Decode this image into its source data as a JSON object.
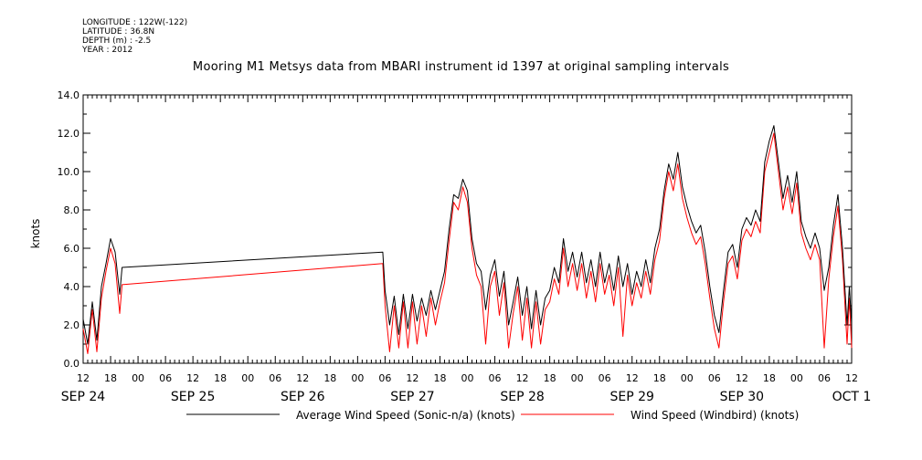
{
  "meta": {
    "longitude": "LONGITUDE : 122W(-122)",
    "latitude": "LATITUDE : 36.8N",
    "depth": "DEPTH (m) : -2.5",
    "year": "YEAR : 2012"
  },
  "colors": {
    "series_avg": "#000000",
    "series_windbird": "#ff0000"
  },
  "chart_data": {
    "type": "line",
    "title": "Mooring M1 Metsys data from MBARI instrument id 1397 at original sampling intervals",
    "ylabel": "knots",
    "xlabel": "",
    "ylim": [
      0,
      14
    ],
    "y_ticks": [
      "0.0",
      "2.0",
      "4.0",
      "6.0",
      "8.0",
      "10.0",
      "12.0",
      "14.0"
    ],
    "xlim": [
      "2012-09-24T12:00",
      "2012-10-01T12:00"
    ],
    "x_hour_ticks": [
      "12",
      "18",
      "00",
      "06",
      "12",
      "18",
      "00",
      "06",
      "12",
      "18",
      "00",
      "06",
      "12",
      "18",
      "00",
      "06",
      "12",
      "18",
      "00",
      "06",
      "12",
      "18",
      "00",
      "06",
      "12",
      "18",
      "00",
      "06",
      "12"
    ],
    "x_day_labels": [
      {
        "label": "SEP 24",
        "at": "2012-09-24T12:00"
      },
      {
        "label": "SEP 25",
        "at": "2012-09-25T12:00"
      },
      {
        "label": "SEP 26",
        "at": "2012-09-26T12:00"
      },
      {
        "label": "SEP 27",
        "at": "2012-09-27T12:00"
      },
      {
        "label": "SEP 28",
        "at": "2012-09-28T12:00"
      },
      {
        "label": "SEP 29",
        "at": "2012-09-29T12:00"
      },
      {
        "label": "SEP 30",
        "at": "2012-09-30T12:00"
      },
      {
        "label": "OCT  1",
        "at": "2012-10-01T12:00"
      }
    ],
    "legend_placement": "bottom",
    "series": [
      {
        "name": "Average Wind Speed (Sonic-n/a) (knots)",
        "color": "#000000",
        "points": [
          [
            "2012-09-24T12:00",
            2.3
          ],
          [
            "2012-09-24T13:00",
            1.0
          ],
          [
            "2012-09-24T14:00",
            3.2
          ],
          [
            "2012-09-24T15:00",
            1.2
          ],
          [
            "2012-09-24T16:00",
            4.0
          ],
          [
            "2012-09-24T17:00",
            5.2
          ],
          [
            "2012-09-24T18:00",
            6.5
          ],
          [
            "2012-09-24T19:00",
            5.8
          ],
          [
            "2012-09-24T20:00",
            3.6
          ],
          [
            "2012-09-24T20:30",
            5.0
          ],
          [
            "2012-09-27T05:30",
            5.8
          ],
          [
            "2012-09-27T06:00",
            3.8
          ],
          [
            "2012-09-27T07:00",
            2.0
          ],
          [
            "2012-09-27T08:00",
            3.5
          ],
          [
            "2012-09-27T09:00",
            1.5
          ],
          [
            "2012-09-27T10:00",
            3.6
          ],
          [
            "2012-09-27T11:00",
            1.8
          ],
          [
            "2012-09-27T12:00",
            3.6
          ],
          [
            "2012-09-27T13:00",
            2.2
          ],
          [
            "2012-09-27T14:00",
            3.4
          ],
          [
            "2012-09-27T15:00",
            2.5
          ],
          [
            "2012-09-27T16:00",
            3.8
          ],
          [
            "2012-09-27T17:00",
            2.8
          ],
          [
            "2012-09-27T18:00",
            3.8
          ],
          [
            "2012-09-27T19:00",
            4.8
          ],
          [
            "2012-09-27T20:00",
            7.0
          ],
          [
            "2012-09-27T21:00",
            8.8
          ],
          [
            "2012-09-27T22:00",
            8.6
          ],
          [
            "2012-09-27T23:00",
            9.6
          ],
          [
            "2012-09-28T00:00",
            9.0
          ],
          [
            "2012-09-28T01:00",
            6.5
          ],
          [
            "2012-09-28T02:00",
            5.2
          ],
          [
            "2012-09-28T03:00",
            4.8
          ],
          [
            "2012-09-28T04:00",
            2.8
          ],
          [
            "2012-09-28T05:00",
            4.6
          ],
          [
            "2012-09-28T06:00",
            5.4
          ],
          [
            "2012-09-28T07:00",
            3.5
          ],
          [
            "2012-09-28T08:00",
            4.8
          ],
          [
            "2012-09-28T09:00",
            2.0
          ],
          [
            "2012-09-28T10:00",
            3.2
          ],
          [
            "2012-09-28T11:00",
            4.5
          ],
          [
            "2012-09-28T12:00",
            2.5
          ],
          [
            "2012-09-28T13:00",
            4.0
          ],
          [
            "2012-09-28T14:00",
            1.8
          ],
          [
            "2012-09-28T15:00",
            3.8
          ],
          [
            "2012-09-28T16:00",
            2.0
          ],
          [
            "2012-09-28T17:00",
            3.4
          ],
          [
            "2012-09-28T18:00",
            3.8
          ],
          [
            "2012-09-28T19:00",
            5.0
          ],
          [
            "2012-09-28T20:00",
            4.2
          ],
          [
            "2012-09-28T21:00",
            6.5
          ],
          [
            "2012-09-28T22:00",
            4.8
          ],
          [
            "2012-09-28T23:00",
            5.8
          ],
          [
            "2012-09-29T00:00",
            4.5
          ],
          [
            "2012-09-29T01:00",
            5.8
          ],
          [
            "2012-09-29T02:00",
            4.2
          ],
          [
            "2012-09-29T03:00",
            5.4
          ],
          [
            "2012-09-29T04:00",
            4.0
          ],
          [
            "2012-09-29T05:00",
            5.8
          ],
          [
            "2012-09-29T06:00",
            4.2
          ],
          [
            "2012-09-29T07:00",
            5.2
          ],
          [
            "2012-09-29T08:00",
            3.8
          ],
          [
            "2012-09-29T09:00",
            5.6
          ],
          [
            "2012-09-29T10:00",
            4.0
          ],
          [
            "2012-09-29T11:00",
            5.2
          ],
          [
            "2012-09-29T12:00",
            3.6
          ],
          [
            "2012-09-29T13:00",
            4.8
          ],
          [
            "2012-09-29T14:00",
            4.0
          ],
          [
            "2012-09-29T15:00",
            5.4
          ],
          [
            "2012-09-29T16:00",
            4.2
          ],
          [
            "2012-09-29T17:00",
            6.0
          ],
          [
            "2012-09-29T18:00",
            7.0
          ],
          [
            "2012-09-29T19:00",
            9.0
          ],
          [
            "2012-09-29T20:00",
            10.4
          ],
          [
            "2012-09-29T21:00",
            9.6
          ],
          [
            "2012-09-29T22:00",
            11.0
          ],
          [
            "2012-09-29T23:00",
            9.2
          ],
          [
            "2012-09-30T00:00",
            8.2
          ],
          [
            "2012-09-30T01:00",
            7.4
          ],
          [
            "2012-09-30T02:00",
            6.8
          ],
          [
            "2012-09-30T03:00",
            7.2
          ],
          [
            "2012-09-30T04:00",
            5.8
          ],
          [
            "2012-09-30T05:00",
            4.0
          ],
          [
            "2012-09-30T06:00",
            2.5
          ],
          [
            "2012-09-30T07:00",
            1.6
          ],
          [
            "2012-09-30T08:00",
            3.8
          ],
          [
            "2012-09-30T09:00",
            5.8
          ],
          [
            "2012-09-30T10:00",
            6.2
          ],
          [
            "2012-09-30T11:00",
            5.0
          ],
          [
            "2012-09-30T12:00",
            7.0
          ],
          [
            "2012-09-30T13:00",
            7.6
          ],
          [
            "2012-09-30T14:00",
            7.2
          ],
          [
            "2012-09-30T15:00",
            8.0
          ],
          [
            "2012-09-30T16:00",
            7.4
          ],
          [
            "2012-09-30T17:00",
            10.5
          ],
          [
            "2012-09-30T18:00",
            11.6
          ],
          [
            "2012-09-30T19:00",
            12.4
          ],
          [
            "2012-09-30T20:00",
            10.5
          ],
          [
            "2012-09-30T21:00",
            8.6
          ],
          [
            "2012-09-30T22:00",
            9.8
          ],
          [
            "2012-09-30T23:00",
            8.4
          ],
          [
            "2012-10-01T00:00",
            10.0
          ],
          [
            "2012-10-01T01:00",
            7.4
          ],
          [
            "2012-10-01T02:00",
            6.6
          ],
          [
            "2012-10-01T03:00",
            6.0
          ],
          [
            "2012-10-01T04:00",
            6.8
          ],
          [
            "2012-10-01T05:00",
            6.0
          ],
          [
            "2012-10-01T06:00",
            3.8
          ],
          [
            "2012-10-01T07:00",
            5.0
          ],
          [
            "2012-10-01T08:00",
            7.2
          ],
          [
            "2012-10-01T09:00",
            8.8
          ],
          [
            "2012-10-01T10:00",
            6.0
          ],
          [
            "2012-10-01T11:00",
            2.0
          ],
          [
            "2012-10-01T11:30",
            4.0
          ],
          [
            "2012-10-01T12:00",
            2.0
          ]
        ]
      },
      {
        "name": "Wind Speed (Windbird) (knots)",
        "color": "#ff0000",
        "points": [
          [
            "2012-09-24T12:00",
            1.8
          ],
          [
            "2012-09-24T13:00",
            0.5
          ],
          [
            "2012-09-24T14:00",
            2.8
          ],
          [
            "2012-09-24T15:00",
            0.6
          ],
          [
            "2012-09-24T16:00",
            3.4
          ],
          [
            "2012-09-24T17:00",
            4.8
          ],
          [
            "2012-09-24T18:00",
            6.0
          ],
          [
            "2012-09-24T19:00",
            5.2
          ],
          [
            "2012-09-24T20:00",
            2.6
          ],
          [
            "2012-09-24T20:30",
            4.1
          ],
          [
            "2012-09-27T05:30",
            5.2
          ],
          [
            "2012-09-27T06:00",
            3.0
          ],
          [
            "2012-09-27T07:00",
            0.6
          ],
          [
            "2012-09-27T08:00",
            3.0
          ],
          [
            "2012-09-27T09:00",
            0.8
          ],
          [
            "2012-09-27T10:00",
            3.2
          ],
          [
            "2012-09-27T11:00",
            0.8
          ],
          [
            "2012-09-27T12:00",
            3.2
          ],
          [
            "2012-09-27T13:00",
            1.0
          ],
          [
            "2012-09-27T14:00",
            3.0
          ],
          [
            "2012-09-27T15:00",
            1.4
          ],
          [
            "2012-09-27T16:00",
            3.4
          ],
          [
            "2012-09-27T17:00",
            2.0
          ],
          [
            "2012-09-27T18:00",
            3.2
          ],
          [
            "2012-09-27T19:00",
            4.2
          ],
          [
            "2012-09-27T20:00",
            6.4
          ],
          [
            "2012-09-27T21:00",
            8.4
          ],
          [
            "2012-09-27T22:00",
            8.0
          ],
          [
            "2012-09-27T23:00",
            9.2
          ],
          [
            "2012-09-28T00:00",
            8.4
          ],
          [
            "2012-09-28T01:00",
            6.0
          ],
          [
            "2012-09-28T02:00",
            4.6
          ],
          [
            "2012-09-28T03:00",
            4.0
          ],
          [
            "2012-09-28T04:00",
            1.0
          ],
          [
            "2012-09-28T05:00",
            4.0
          ],
          [
            "2012-09-28T06:00",
            4.8
          ],
          [
            "2012-09-28T07:00",
            2.5
          ],
          [
            "2012-09-28T08:00",
            4.2
          ],
          [
            "2012-09-28T09:00",
            0.8
          ],
          [
            "2012-09-28T10:00",
            2.6
          ],
          [
            "2012-09-28T11:00",
            4.0
          ],
          [
            "2012-09-28T12:00",
            1.2
          ],
          [
            "2012-09-28T13:00",
            3.4
          ],
          [
            "2012-09-28T14:00",
            0.8
          ],
          [
            "2012-09-28T15:00",
            3.2
          ],
          [
            "2012-09-28T16:00",
            1.0
          ],
          [
            "2012-09-28T17:00",
            2.8
          ],
          [
            "2012-09-28T18:00",
            3.2
          ],
          [
            "2012-09-28T19:00",
            4.4
          ],
          [
            "2012-09-28T20:00",
            3.6
          ],
          [
            "2012-09-28T21:00",
            6.0
          ],
          [
            "2012-09-28T22:00",
            4.0
          ],
          [
            "2012-09-28T23:00",
            5.2
          ],
          [
            "2012-09-29T00:00",
            3.8
          ],
          [
            "2012-09-29T01:00",
            5.2
          ],
          [
            "2012-09-29T02:00",
            3.4
          ],
          [
            "2012-09-29T03:00",
            4.8
          ],
          [
            "2012-09-29T04:00",
            3.2
          ],
          [
            "2012-09-29T05:00",
            5.2
          ],
          [
            "2012-09-29T06:00",
            3.6
          ],
          [
            "2012-09-29T07:00",
            4.6
          ],
          [
            "2012-09-29T08:00",
            3.0
          ],
          [
            "2012-09-29T09:00",
            5.0
          ],
          [
            "2012-09-29T10:00",
            1.4
          ],
          [
            "2012-09-29T11:00",
            4.6
          ],
          [
            "2012-09-29T12:00",
            3.0
          ],
          [
            "2012-09-29T13:00",
            4.2
          ],
          [
            "2012-09-29T14:00",
            3.4
          ],
          [
            "2012-09-29T15:00",
            4.8
          ],
          [
            "2012-09-29T16:00",
            3.6
          ],
          [
            "2012-09-29T17:00",
            5.4
          ],
          [
            "2012-09-29T18:00",
            6.4
          ],
          [
            "2012-09-29T19:00",
            8.6
          ],
          [
            "2012-09-29T20:00",
            10.0
          ],
          [
            "2012-09-29T21:00",
            9.0
          ],
          [
            "2012-09-29T22:00",
            10.4
          ],
          [
            "2012-09-29T23:00",
            8.6
          ],
          [
            "2012-09-30T00:00",
            7.6
          ],
          [
            "2012-09-30T01:00",
            6.8
          ],
          [
            "2012-09-30T02:00",
            6.2
          ],
          [
            "2012-09-30T03:00",
            6.6
          ],
          [
            "2012-09-30T04:00",
            5.2
          ],
          [
            "2012-09-30T05:00",
            3.4
          ],
          [
            "2012-09-30T06:00",
            1.8
          ],
          [
            "2012-09-30T07:00",
            0.8
          ],
          [
            "2012-09-30T08:00",
            3.2
          ],
          [
            "2012-09-30T09:00",
            5.2
          ],
          [
            "2012-09-30T10:00",
            5.6
          ],
          [
            "2012-09-30T11:00",
            4.4
          ],
          [
            "2012-09-30T12:00",
            6.4
          ],
          [
            "2012-09-30T13:00",
            7.0
          ],
          [
            "2012-09-30T14:00",
            6.6
          ],
          [
            "2012-09-30T15:00",
            7.4
          ],
          [
            "2012-09-30T16:00",
            6.8
          ],
          [
            "2012-09-30T17:00",
            10.0
          ],
          [
            "2012-09-30T18:00",
            11.0
          ],
          [
            "2012-09-30T19:00",
            12.0
          ],
          [
            "2012-09-30T20:00",
            10.0
          ],
          [
            "2012-09-30T21:00",
            8.0
          ],
          [
            "2012-09-30T22:00",
            9.2
          ],
          [
            "2012-09-30T23:00",
            7.8
          ],
          [
            "2012-10-01T00:00",
            9.4
          ],
          [
            "2012-10-01T01:00",
            6.8
          ],
          [
            "2012-10-01T02:00",
            6.0
          ],
          [
            "2012-10-01T03:00",
            5.4
          ],
          [
            "2012-10-01T04:00",
            6.2
          ],
          [
            "2012-10-01T05:00",
            5.4
          ],
          [
            "2012-10-01T06:00",
            0.8
          ],
          [
            "2012-10-01T07:00",
            4.4
          ],
          [
            "2012-10-01T08:00",
            6.6
          ],
          [
            "2012-10-01T09:00",
            8.2
          ],
          [
            "2012-10-01T10:00",
            5.4
          ],
          [
            "2012-10-01T11:00",
            1.0
          ],
          [
            "2012-10-01T11:30",
            3.4
          ],
          [
            "2012-10-01T12:00",
            0.8
          ]
        ]
      }
    ]
  }
}
